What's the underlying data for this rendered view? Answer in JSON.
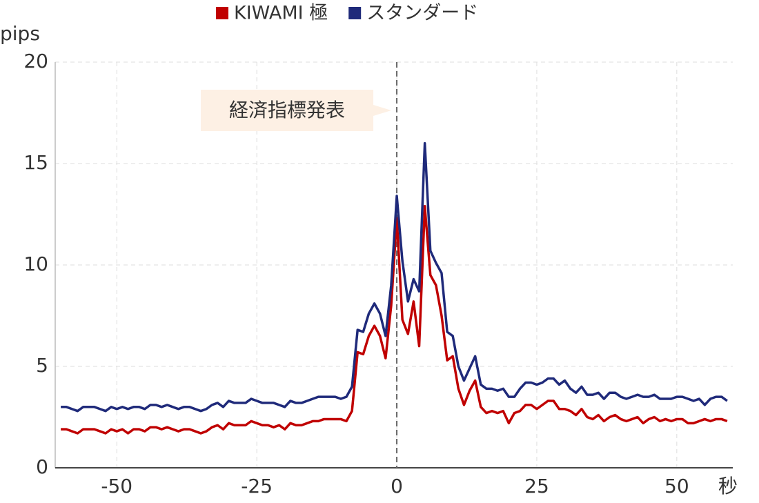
{
  "chart_data": {
    "type": "line",
    "y_label": "pips",
    "x_label": "秒",
    "x": [
      -60,
      -59,
      -58,
      -57,
      -56,
      -55,
      -54,
      -53,
      -52,
      -51,
      -50,
      -49,
      -48,
      -47,
      -46,
      -45,
      -44,
      -43,
      -42,
      -41,
      -40,
      -39,
      -38,
      -37,
      -36,
      -35,
      -34,
      -33,
      -32,
      -31,
      -30,
      -29,
      -28,
      -27,
      -26,
      -25,
      -24,
      -23,
      -22,
      -21,
      -20,
      -19,
      -18,
      -17,
      -16,
      -15,
      -14,
      -13,
      -12,
      -11,
      -10,
      -9,
      -8,
      -7,
      -6,
      -5,
      -4,
      -3,
      -2,
      -1,
      0,
      1,
      2,
      3,
      4,
      5,
      6,
      7,
      8,
      9,
      10,
      11,
      12,
      13,
      14,
      15,
      16,
      17,
      18,
      19,
      20,
      21,
      22,
      23,
      24,
      25,
      26,
      27,
      28,
      29,
      30,
      31,
      32,
      33,
      34,
      35,
      36,
      37,
      38,
      39,
      40,
      41,
      42,
      43,
      44,
      45,
      46,
      47,
      48,
      49,
      50,
      51,
      52,
      53,
      54,
      55,
      56,
      57,
      58,
      59
    ],
    "series": [
      {
        "name": "KIWAMI 極",
        "color": "#c00000",
        "values": [
          1.9,
          1.9,
          1.8,
          1.7,
          1.9,
          1.9,
          1.9,
          1.8,
          1.7,
          1.9,
          1.8,
          1.9,
          1.7,
          1.9,
          1.9,
          1.8,
          2.0,
          2.0,
          1.9,
          2.0,
          1.9,
          1.8,
          1.9,
          1.9,
          1.8,
          1.7,
          1.8,
          2.0,
          2.1,
          1.9,
          2.2,
          2.1,
          2.1,
          2.1,
          2.3,
          2.2,
          2.1,
          2.1,
          2.0,
          2.1,
          1.9,
          2.2,
          2.1,
          2.1,
          2.2,
          2.3,
          2.3,
          2.4,
          2.4,
          2.4,
          2.4,
          2.3,
          2.8,
          5.7,
          5.6,
          6.5,
          7.0,
          6.5,
          5.4,
          8.0,
          12.3,
          7.3,
          6.6,
          8.2,
          6.0,
          12.9,
          9.5,
          9.0,
          7.5,
          5.3,
          5.5,
          3.9,
          3.1,
          3.8,
          4.3,
          3.0,
          2.7,
          2.8,
          2.7,
          2.8,
          2.2,
          2.7,
          2.8,
          3.1,
          3.1,
          2.9,
          3.1,
          3.3,
          3.3,
          2.9,
          2.9,
          2.8,
          2.6,
          2.9,
          2.5,
          2.4,
          2.6,
          2.3,
          2.5,
          2.6,
          2.4,
          2.3,
          2.4,
          2.5,
          2.2,
          2.4,
          2.5,
          2.3,
          2.4,
          2.3,
          2.4,
          2.4,
          2.2,
          2.2,
          2.3,
          2.4,
          2.3,
          2.4,
          2.4,
          2.3
        ]
      },
      {
        "name": "スタンダード",
        "color": "#1f2a7a",
        "values": [
          3.0,
          3.0,
          2.9,
          2.8,
          3.0,
          3.0,
          3.0,
          2.9,
          2.8,
          3.0,
          2.9,
          3.0,
          2.9,
          3.0,
          3.0,
          2.9,
          3.1,
          3.1,
          3.0,
          3.1,
          3.0,
          2.9,
          3.0,
          3.0,
          2.9,
          2.8,
          2.9,
          3.1,
          3.2,
          3.0,
          3.3,
          3.2,
          3.2,
          3.2,
          3.4,
          3.3,
          3.2,
          3.2,
          3.2,
          3.1,
          3.0,
          3.3,
          3.2,
          3.2,
          3.3,
          3.4,
          3.5,
          3.5,
          3.5,
          3.5,
          3.4,
          3.5,
          4.0,
          6.8,
          6.7,
          7.6,
          8.1,
          7.6,
          6.5,
          9.0,
          13.4,
          10.2,
          8.2,
          9.3,
          8.7,
          16.0,
          10.7,
          10.1,
          9.6,
          6.7,
          6.5,
          5.0,
          4.3,
          4.9,
          5.5,
          4.1,
          3.9,
          3.9,
          3.8,
          3.9,
          3.5,
          3.5,
          3.9,
          4.2,
          4.2,
          4.1,
          4.2,
          4.4,
          4.4,
          4.1,
          4.3,
          3.9,
          3.7,
          4.0,
          3.6,
          3.6,
          3.7,
          3.4,
          3.7,
          3.7,
          3.5,
          3.4,
          3.5,
          3.6,
          3.5,
          3.5,
          3.6,
          3.4,
          3.4,
          3.4,
          3.5,
          3.5,
          3.4,
          3.3,
          3.4,
          3.1,
          3.4,
          3.5,
          3.5,
          3.3
        ]
      }
    ],
    "xlim": [
      -61,
      60
    ],
    "xticks": [
      -50,
      -25,
      0,
      25,
      50
    ],
    "ylim": [
      0,
      20
    ],
    "yticks": [
      0,
      5,
      10,
      15,
      20
    ],
    "grid": true,
    "annotation": {
      "text": "経済指標発表",
      "x": 0
    }
  }
}
